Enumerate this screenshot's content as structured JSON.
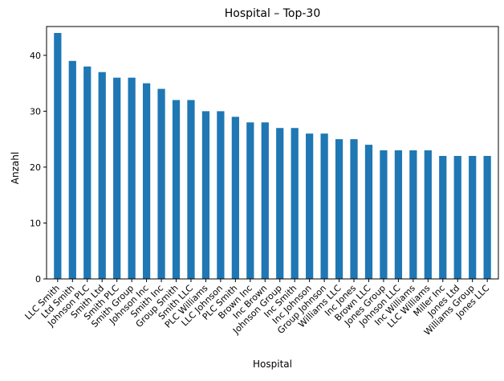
{
  "chart_data": {
    "type": "bar",
    "title": "Hospital – Top-30",
    "xlabel": "Hospital",
    "ylabel": "Anzahl",
    "ylim": [
      0,
      45.15
    ],
    "yticks": [
      0,
      10,
      20,
      30,
      40
    ],
    "grid": false,
    "legend": "none",
    "bar_color": "#1f77b4",
    "categories": [
      "LLC Smith",
      "Ltd Smith",
      "Johnson PLC",
      "Smith Ltd",
      "Smith PLC",
      "Smith Group",
      "Johnson Inc",
      "Smith Inc",
      "Group Smith",
      "Smith LLC",
      "PLC Williams",
      "LLC Johnson",
      "PLC Smith",
      "Brown Inc",
      "Inc Brown",
      "Johnson Group",
      "Inc Smith",
      "Inc Johnson",
      "Group Johnson",
      "Williams LLC",
      "Inc Jones",
      "Brown LLC",
      "Jones Group",
      "Johnson LLC",
      "Inc Williams",
      "LLC Williams",
      "Miller Inc",
      "Jones Ltd",
      "Williams Group",
      "Jones LLC"
    ],
    "values": [
      44,
      39,
      38,
      37,
      36,
      36,
      35,
      34,
      32,
      32,
      30,
      30,
      29,
      28,
      28,
      27,
      27,
      26,
      26,
      25,
      25,
      24,
      23,
      23,
      23,
      23,
      22,
      22,
      22,
      22
    ]
  }
}
